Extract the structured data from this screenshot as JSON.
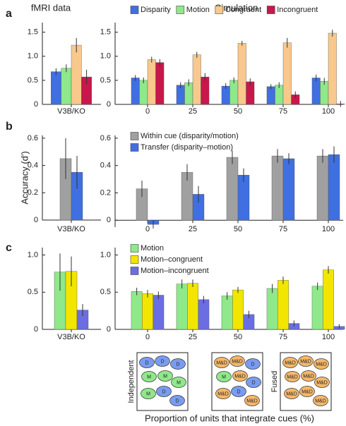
{
  "chart_data": [
    {
      "type": "bar",
      "title": "fMRI data",
      "panel": "a",
      "categories": [
        "V3B/KO"
      ],
      "series": [
        {
          "color": "#3f6fe0",
          "values": [
            0.68
          ],
          "errors": [
            0.07
          ]
        },
        {
          "color": "#8fe88a",
          "values": [
            0.75
          ],
          "errors": [
            0.08
          ]
        },
        {
          "color": "#f8c88c",
          "values": [
            1.23
          ],
          "errors": [
            0.15
          ]
        },
        {
          "color": "#c8174b",
          "values": [
            0.57
          ],
          "errors": [
            0.15
          ]
        }
      ],
      "ylim": [
        0,
        1.7
      ],
      "yticks": [
        0,
        0.5,
        {
          "value": 1,
          "label": "1.0"
        },
        1.5
      ]
    },
    {
      "type": "bar",
      "title": "Simulation",
      "legend": "top",
      "categories": [
        "0",
        "25",
        "50",
        "75",
        "100"
      ],
      "series": [
        {
          "name": "Disparity",
          "color": "#3f6fe0",
          "values": [
            0.55,
            0.4,
            0.38,
            0.37,
            0.55
          ],
          "errors": [
            0.06,
            0.06,
            0.06,
            0.05,
            0.07
          ]
        },
        {
          "name": "Motion",
          "color": "#8fe88a",
          "values": [
            0.5,
            0.45,
            0.5,
            0.4,
            0.48
          ],
          "errors": [
            0.06,
            0.07,
            0.06,
            0.06,
            0.07
          ]
        },
        {
          "name": "Congruent",
          "color": "#f8c88c",
          "values": [
            0.93,
            1.03,
            1.27,
            1.28,
            1.48
          ],
          "errors": [
            0.06,
            0.06,
            0.05,
            0.1,
            0.07
          ]
        },
        {
          "name": "Incongruent",
          "color": "#c8174b",
          "values": [
            0.87,
            0.57,
            0.47,
            0.2,
            0.01
          ],
          "errors": [
            0.07,
            0.08,
            0.07,
            0.07,
            0.06
          ]
        }
      ],
      "ylim": [
        0,
        1.7
      ],
      "yticks": [
        0,
        0.5,
        {
          "value": 1,
          "label": "1.0"
        },
        1.5
      ]
    },
    {
      "type": "bar",
      "panel": "b",
      "ylabel": "Accuracy (d')",
      "categories": [
        "V3B/KO"
      ],
      "series": [
        {
          "color": "#a0a0a0",
          "values": [
            0.45
          ],
          "errors": [
            0.15
          ]
        },
        {
          "color": "#3f6fe0",
          "values": [
            0.35
          ],
          "errors": [
            0.12
          ]
        }
      ],
      "ylim": [
        0,
        0.62
      ],
      "yticks": [
        0,
        0.2,
        0.4,
        0.6
      ]
    },
    {
      "type": "bar",
      "legend": "top-left",
      "categories": [
        "0",
        "25",
        "50",
        "75",
        "100"
      ],
      "series": [
        {
          "name": "Within cue (disparity/motion)",
          "color": "#a0a0a0",
          "values": [
            0.23,
            0.35,
            0.46,
            0.47,
            0.47
          ],
          "errors": [
            0.06,
            0.06,
            0.05,
            0.05,
            0.05
          ]
        },
        {
          "name": "Transfer (disparity–motion)",
          "color": "#3f6fe0",
          "values": [
            -0.03,
            0.19,
            0.33,
            0.45,
            0.48
          ],
          "errors": [
            0.03,
            0.06,
            0.05,
            0.04,
            0.06
          ]
        }
      ],
      "ylim": [
        -0.05,
        0.62
      ],
      "yticks": [
        0,
        0.2,
        0.4,
        0.6
      ]
    },
    {
      "type": "bar",
      "panel": "c",
      "categories": [
        "V3B/KO"
      ],
      "series": [
        {
          "color": "#8fe88a",
          "values": [
            0.77
          ],
          "errors": [
            0.25
          ]
        },
        {
          "color": "#f2e600",
          "values": [
            0.78
          ],
          "errors": [
            0.2
          ]
        },
        {
          "color": "#6a6ee0",
          "values": [
            0.26
          ],
          "errors": [
            0.08
          ]
        }
      ],
      "ylim": [
        0,
        1.1
      ],
      "yticks": [
        0,
        0.5,
        {
          "value": 1,
          "label": "1.0"
        }
      ]
    },
    {
      "type": "bar",
      "legend": "top-left",
      "xlabel": "Proportion of units that integrate cues (%)",
      "categories": [
        "0",
        "25",
        "50",
        "75",
        "100"
      ],
      "series": [
        {
          "name": "Motion",
          "color": "#8fe88a",
          "values": [
            0.51,
            0.61,
            0.45,
            0.55,
            0.58
          ],
          "errors": [
            0.05,
            0.06,
            0.05,
            0.06,
            0.05
          ]
        },
        {
          "name": "Motion–congruent",
          "color": "#f2e600",
          "values": [
            0.48,
            0.62,
            0.53,
            0.66,
            0.8
          ],
          "errors": [
            0.05,
            0.05,
            0.04,
            0.05,
            0.05
          ]
        },
        {
          "name": "Motion–incongruent",
          "color": "#6a6ee0",
          "values": [
            0.46,
            0.4,
            0.2,
            0.08,
            0.04
          ],
          "errors": [
            0.05,
            0.05,
            0.05,
            0.04,
            0.03
          ]
        }
      ],
      "ylim": [
        0,
        1.1
      ],
      "yticks": [
        0,
        0.5,
        {
          "value": 1,
          "label": "1.0"
        }
      ]
    }
  ],
  "diagrams": [
    {
      "label": "Independent",
      "units": [
        {
          "text": "D",
          "color": "#7a9cf0"
        },
        {
          "text": "D",
          "color": "#7a9cf0"
        },
        {
          "text": "D",
          "color": "#7a9cf0"
        },
        {
          "text": "M",
          "color": "#8fe88a"
        },
        {
          "text": "M",
          "color": "#8fe88a"
        },
        {
          "text": "M",
          "color": "#8fe88a"
        },
        {
          "text": "M",
          "color": "#8fe88a"
        },
        {
          "text": "D",
          "color": "#7a9cf0"
        },
        {
          "text": "D",
          "color": "#7a9cf0"
        }
      ]
    },
    {
      "units": [
        {
          "text": "M&D",
          "color": "#f5b86a"
        },
        {
          "text": "M&D",
          "color": "#f5b86a"
        },
        {
          "text": "D",
          "color": "#7a9cf0"
        },
        {
          "text": "M",
          "color": "#8fe88a"
        },
        {
          "text": "M&D",
          "color": "#f5b86a"
        },
        {
          "text": "D",
          "color": "#7a9cf0"
        },
        {
          "text": "M&D",
          "color": "#f5b86a"
        },
        {
          "text": "D",
          "color": "#7a9cf0"
        },
        {
          "text": "M&D",
          "color": "#f5b86a"
        }
      ]
    },
    {
      "label": "Fused",
      "units": [
        {
          "text": "M&D",
          "color": "#f5b86a"
        },
        {
          "text": "M&D",
          "color": "#f5b86a"
        },
        {
          "text": "M&D",
          "color": "#f5b86a"
        },
        {
          "text": "M&D",
          "color": "#f5b86a"
        },
        {
          "text": "M&D",
          "color": "#f5b86a"
        },
        {
          "text": "M&D",
          "color": "#f5b86a"
        },
        {
          "text": "M&D",
          "color": "#f5b86a"
        },
        {
          "text": "M&D",
          "color": "#f5b86a"
        },
        {
          "text": "M&D",
          "color": "#f5b86a"
        }
      ]
    }
  ]
}
